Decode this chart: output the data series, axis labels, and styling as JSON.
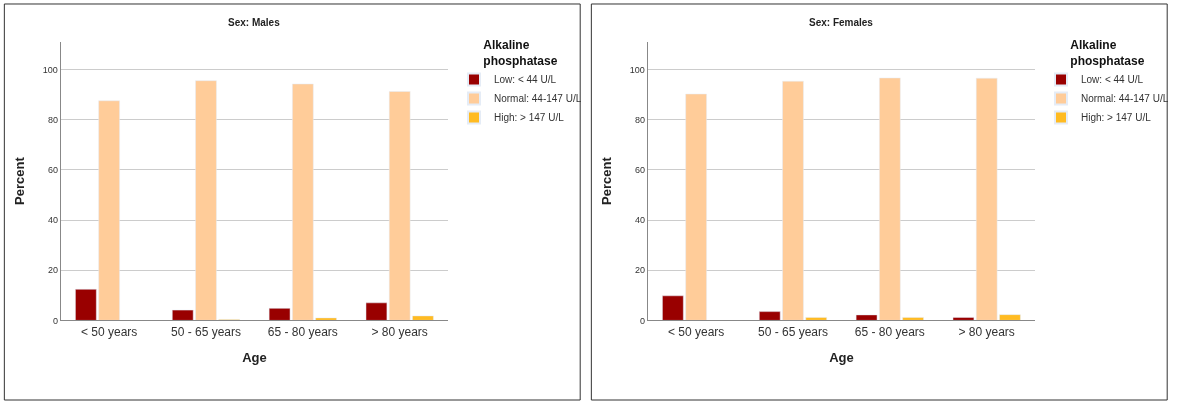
{
  "chart_data": [
    {
      "type": "bar",
      "title": "Sex: Males",
      "xlabel": "Age",
      "ylabel": "Percent",
      "legend_title": "Alkaline phosphatase",
      "legend": "top right",
      "grid": "y",
      "categories": [
        "< 50 years",
        "50 - 65 years",
        "65 - 80 years",
        "> 80 years"
      ],
      "ylim": [
        0,
        111
      ],
      "yticks": [
        0,
        20,
        40,
        60,
        80,
        100
      ],
      "series": [
        {
          "name": "Low: < 44 U/L",
          "color": "#990000",
          "values": [
            12.4,
            4.1,
            4.8,
            7.0
          ]
        },
        {
          "name": "Normal: 44-147 U/L",
          "color": "#ffcc99",
          "values": [
            87.5,
            95.5,
            94.2,
            91.2
          ]
        },
        {
          "name": "High: > 147 U/L",
          "color": "#ffbb22",
          "values": [
            null,
            0.4,
            1.0,
            1.8
          ]
        }
      ]
    },
    {
      "type": "bar",
      "title": "Sex: Females",
      "xlabel": "Age",
      "ylabel": "Percent",
      "legend_title": "Alkaline phosphatase",
      "legend": "top right",
      "grid": "y",
      "categories": [
        "< 50 years",
        "50 - 65 years",
        "65 - 80 years",
        "> 80 years"
      ],
      "ylim": [
        0,
        111
      ],
      "yticks": [
        0,
        20,
        40,
        60,
        80,
        100
      ],
      "series": [
        {
          "name": "Low: < 44 U/L",
          "color": "#990000",
          "values": [
            9.8,
            3.5,
            2.2,
            1.2
          ]
        },
        {
          "name": "Normal: 44-147 U/L",
          "color": "#ffcc99",
          "values": [
            90.2,
            95.3,
            96.6,
            96.5
          ]
        },
        {
          "name": "High: > 147 U/L",
          "color": "#ffbb22",
          "values": [
            null,
            1.2,
            1.2,
            2.3
          ]
        }
      ]
    }
  ]
}
